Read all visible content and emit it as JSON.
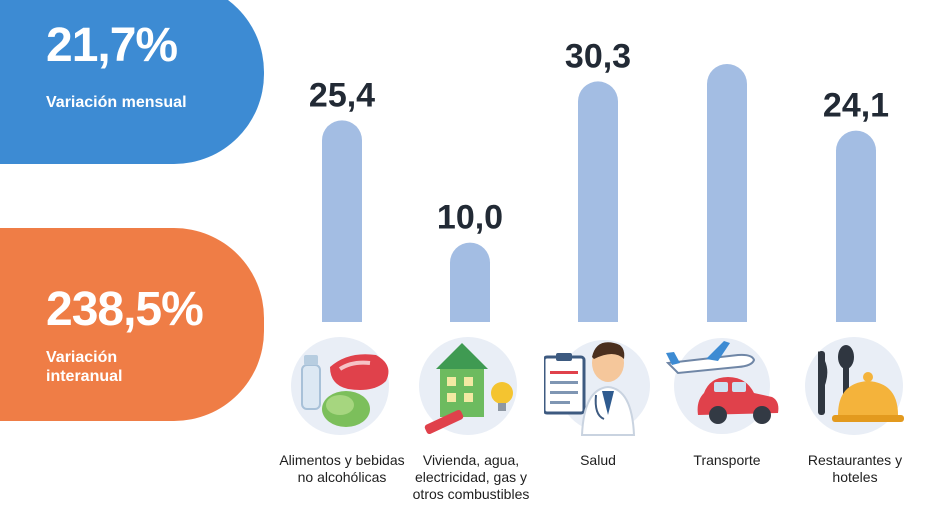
{
  "monthly": {
    "value": "21,7%",
    "label": "Variación mensual"
  },
  "annual": {
    "value": "238,5%",
    "label": "Variación interanual"
  },
  "colors": {
    "bar": "#a3bde3",
    "blue": "#3d8bd3",
    "orange": "#ef7d46"
  },
  "icons": [
    "food-icon",
    "housing-icon",
    "doctor-icon",
    "transport-icon",
    "restaurant-icon"
  ],
  "chart_data": {
    "type": "bar",
    "categories": [
      "Alimentos y bebidas no alcohólicas",
      "Vivienda, agua, electricidad, gas y otros combustibles",
      "Salud",
      "Transporte",
      "Restaurantes y hoteles"
    ],
    "values": [
      25.4,
      10.0,
      30.3,
      32.5,
      24.1
    ],
    "value_labels": [
      "25,4",
      "10,0",
      "30,3",
      "",
      "24,1"
    ],
    "ylim": [
      0,
      40
    ]
  }
}
